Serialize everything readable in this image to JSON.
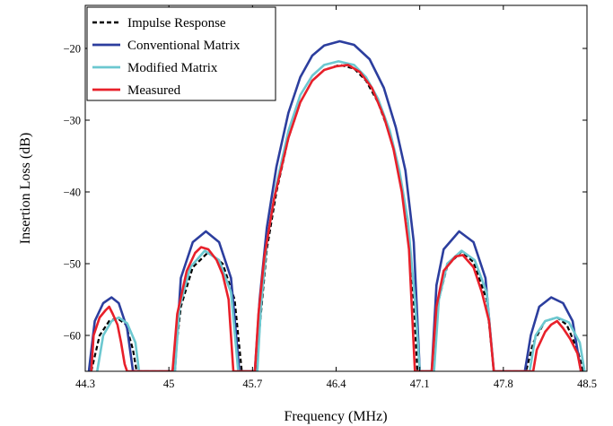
{
  "chart_data": {
    "type": "line",
    "xlabel": "Frequency (MHz)",
    "ylabel": "Insertion Loss (dB)",
    "xlim": [
      44.3,
      48.5
    ],
    "ylim": [
      -65,
      -14
    ],
    "xticks": [
      44.3,
      45,
      45.7,
      46.4,
      47.1,
      47.8,
      48.5
    ],
    "xtick_labels": [
      "44.3",
      "45",
      "45.7",
      "46.4",
      "47.1",
      "47.8",
      "48.5"
    ],
    "yticks": [
      -20,
      -30,
      -40,
      -50,
      -60
    ],
    "ytick_labels": [
      "−20",
      "−30",
      "−40",
      "−50",
      "−60"
    ],
    "grid": false,
    "legend_position": "top-left",
    "series": [
      {
        "name": "Impulse Response",
        "color": "#000000",
        "style": "dashed",
        "points": [
          [
            44.35,
            -65
          ],
          [
            44.42,
            -60
          ],
          [
            44.5,
            -58
          ],
          [
            44.57,
            -57.6
          ],
          [
            44.64,
            -58.5
          ],
          [
            44.7,
            -62
          ],
          [
            44.73,
            -65
          ],
          [
            45.04,
            -65
          ],
          [
            45.1,
            -56
          ],
          [
            45.2,
            -50.5
          ],
          [
            45.33,
            -48.4
          ],
          [
            45.45,
            -50
          ],
          [
            45.55,
            -55
          ],
          [
            45.61,
            -65
          ],
          [
            45.73,
            -65
          ],
          [
            45.77,
            -57
          ],
          [
            45.82,
            -48
          ],
          [
            45.9,
            -40
          ],
          [
            46.0,
            -32.5
          ],
          [
            46.1,
            -27.5
          ],
          [
            46.2,
            -24.5
          ],
          [
            46.3,
            -23
          ],
          [
            46.43,
            -22.3
          ],
          [
            46.55,
            -22.8
          ],
          [
            46.65,
            -24.5
          ],
          [
            46.75,
            -27.5
          ],
          [
            46.85,
            -32
          ],
          [
            46.93,
            -37.5
          ],
          [
            47.0,
            -45
          ],
          [
            47.05,
            -55
          ],
          [
            47.08,
            -65
          ],
          [
            47.2,
            -65
          ],
          [
            47.26,
            -55
          ],
          [
            47.33,
            -50.3
          ],
          [
            47.45,
            -48.3
          ],
          [
            47.55,
            -49.8
          ],
          [
            47.66,
            -55
          ],
          [
            47.72,
            -65
          ],
          [
            47.99,
            -65
          ],
          [
            48.05,
            -61
          ],
          [
            48.15,
            -58
          ],
          [
            48.25,
            -57.5
          ],
          [
            48.33,
            -58.5
          ],
          [
            48.42,
            -62
          ],
          [
            48.47,
            -65
          ]
        ]
      },
      {
        "name": "Conventional Matrix",
        "color": "#2c3e9e",
        "style": "solid",
        "points": [
          [
            44.33,
            -65
          ],
          [
            44.38,
            -58
          ],
          [
            44.45,
            -55.5
          ],
          [
            44.52,
            -54.7
          ],
          [
            44.58,
            -55.5
          ],
          [
            44.65,
            -59
          ],
          [
            44.7,
            -65
          ],
          [
            45.05,
            -65
          ],
          [
            45.1,
            -52
          ],
          [
            45.2,
            -47
          ],
          [
            45.31,
            -45.5
          ],
          [
            45.42,
            -47
          ],
          [
            45.52,
            -52
          ],
          [
            45.59,
            -65
          ],
          [
            45.72,
            -65
          ],
          [
            45.76,
            -55
          ],
          [
            45.82,
            -45
          ],
          [
            45.9,
            -36.5
          ],
          [
            46.0,
            -29
          ],
          [
            46.1,
            -24
          ],
          [
            46.2,
            -21
          ],
          [
            46.3,
            -19.6
          ],
          [
            46.43,
            -19
          ],
          [
            46.55,
            -19.5
          ],
          [
            46.68,
            -21.5
          ],
          [
            46.8,
            -25.5
          ],
          [
            46.9,
            -31
          ],
          [
            46.98,
            -37
          ],
          [
            47.05,
            -47
          ],
          [
            47.1,
            -65
          ],
          [
            47.2,
            -65
          ],
          [
            47.24,
            -53
          ],
          [
            47.3,
            -48
          ],
          [
            47.43,
            -45.5
          ],
          [
            47.55,
            -47
          ],
          [
            47.65,
            -52
          ],
          [
            47.72,
            -65
          ],
          [
            47.98,
            -65
          ],
          [
            48.03,
            -60
          ],
          [
            48.1,
            -56
          ],
          [
            48.2,
            -54.7
          ],
          [
            48.3,
            -55.5
          ],
          [
            48.38,
            -58
          ],
          [
            48.45,
            -65
          ]
        ]
      },
      {
        "name": "Modified Matrix",
        "color": "#6cc8d0",
        "style": "solid",
        "points": [
          [
            44.4,
            -65
          ],
          [
            44.45,
            -60
          ],
          [
            44.52,
            -58
          ],
          [
            44.58,
            -57.5
          ],
          [
            44.65,
            -58.3
          ],
          [
            44.72,
            -61
          ],
          [
            44.75,
            -65
          ],
          [
            45.05,
            -65
          ],
          [
            45.09,
            -56
          ],
          [
            45.18,
            -50.5
          ],
          [
            45.3,
            -48.2
          ],
          [
            45.42,
            -49.5
          ],
          [
            45.52,
            -54
          ],
          [
            45.58,
            -65
          ],
          [
            45.74,
            -65
          ],
          [
            45.77,
            -56
          ],
          [
            45.82,
            -47
          ],
          [
            45.9,
            -39
          ],
          [
            46.0,
            -31.5
          ],
          [
            46.1,
            -26.5
          ],
          [
            46.2,
            -23.8
          ],
          [
            46.3,
            -22.3
          ],
          [
            46.42,
            -21.8
          ],
          [
            46.55,
            -22.3
          ],
          [
            46.65,
            -24
          ],
          [
            46.75,
            -27
          ],
          [
            46.85,
            -31.5
          ],
          [
            46.93,
            -37
          ],
          [
            47.0,
            -44
          ],
          [
            47.06,
            -55
          ],
          [
            47.1,
            -65
          ],
          [
            47.22,
            -65
          ],
          [
            47.26,
            -55
          ],
          [
            47.33,
            -50
          ],
          [
            47.45,
            -48.2
          ],
          [
            47.56,
            -49.5
          ],
          [
            47.66,
            -54
          ],
          [
            47.72,
            -65
          ],
          [
            48.02,
            -65
          ],
          [
            48.07,
            -60
          ],
          [
            48.15,
            -58
          ],
          [
            48.25,
            -57.5
          ],
          [
            48.35,
            -58.2
          ],
          [
            48.44,
            -61
          ],
          [
            48.48,
            -65
          ]
        ]
      },
      {
        "name": "Measured",
        "color": "#e8202a",
        "style": "solid",
        "points": [
          [
            44.35,
            -65
          ],
          [
            44.37,
            -60
          ],
          [
            44.42,
            -57.5
          ],
          [
            44.47,
            -56.5
          ],
          [
            44.5,
            -56
          ],
          [
            44.53,
            -57
          ],
          [
            44.57,
            -58.5
          ],
          [
            44.6,
            -61
          ],
          [
            44.63,
            -64
          ],
          [
            44.65,
            -65
          ],
          [
            45.03,
            -65
          ],
          [
            45.07,
            -57
          ],
          [
            45.15,
            -51
          ],
          [
            45.22,
            -48.5
          ],
          [
            45.27,
            -47.7
          ],
          [
            45.33,
            -48
          ],
          [
            45.4,
            -49.5
          ],
          [
            45.45,
            -51.5
          ],
          [
            45.5,
            -55
          ],
          [
            45.54,
            -65
          ],
          [
            45.72,
            -65
          ],
          [
            45.75,
            -57
          ],
          [
            45.8,
            -49
          ],
          [
            45.88,
            -41
          ],
          [
            46.0,
            -32.5
          ],
          [
            46.1,
            -27.5
          ],
          [
            46.2,
            -24.5
          ],
          [
            46.3,
            -23
          ],
          [
            46.4,
            -22.5
          ],
          [
            46.5,
            -22.3
          ],
          [
            46.6,
            -23.3
          ],
          [
            46.7,
            -25.5
          ],
          [
            46.8,
            -29.5
          ],
          [
            46.88,
            -34
          ],
          [
            46.95,
            -40
          ],
          [
            47.01,
            -48
          ],
          [
            47.06,
            -65
          ],
          [
            47.2,
            -65
          ],
          [
            47.24,
            -56
          ],
          [
            47.3,
            -51
          ],
          [
            47.4,
            -49
          ],
          [
            47.46,
            -48.8
          ],
          [
            47.55,
            -50.5
          ],
          [
            47.62,
            -54
          ],
          [
            47.68,
            -58
          ],
          [
            47.72,
            -65
          ],
          [
            48.05,
            -65
          ],
          [
            48.08,
            -62
          ],
          [
            48.15,
            -59.5
          ],
          [
            48.2,
            -58.5
          ],
          [
            48.25,
            -58
          ],
          [
            48.3,
            -59
          ],
          [
            48.36,
            -60.5
          ],
          [
            48.42,
            -62.5
          ],
          [
            48.45,
            -65
          ]
        ]
      }
    ]
  }
}
